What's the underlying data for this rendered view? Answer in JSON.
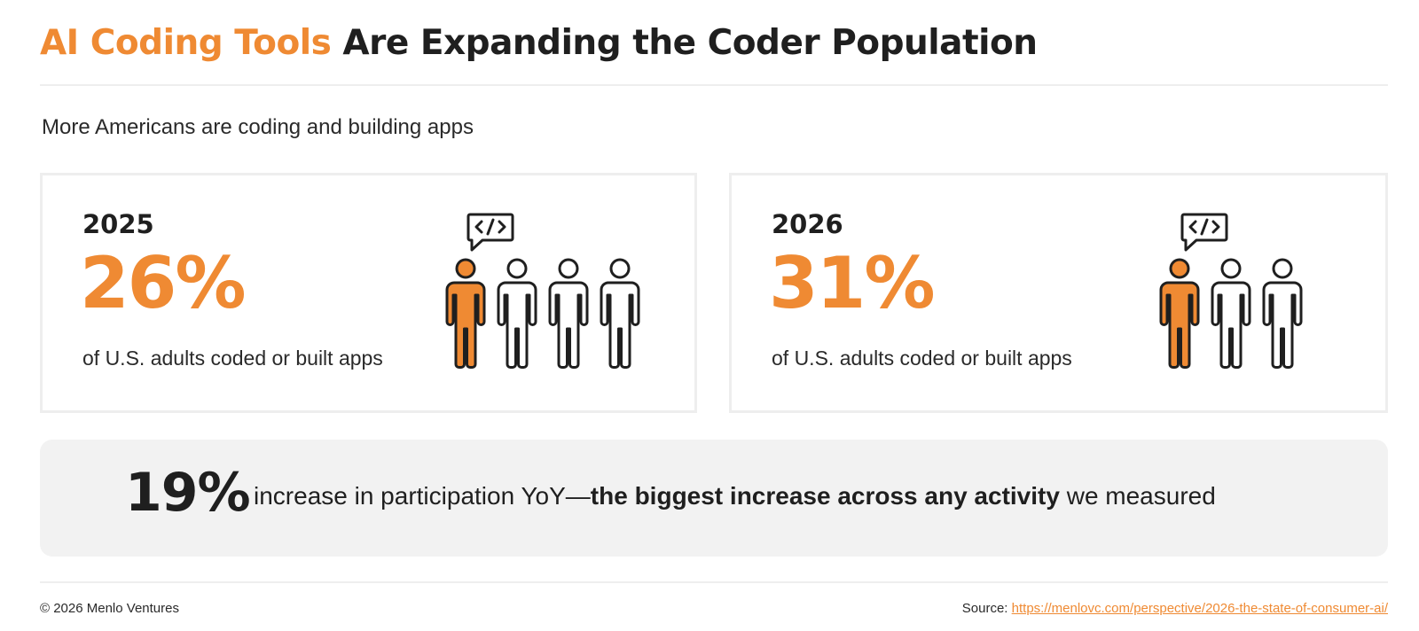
{
  "header": {
    "title_accent": "AI Coding Tools",
    "title_rest": "Are Expanding the Coder Population"
  },
  "subtitle": "More Americans are coding and building apps",
  "cards": [
    {
      "year": "2025",
      "percent": "26%",
      "description": "of U.S. adults coded or built apps",
      "figures_total": 4,
      "figures_highlighted": 1
    },
    {
      "year": "2026",
      "percent": "31%",
      "description": "of U.S. adults coded or built apps",
      "figures_total": 3,
      "figures_highlighted": 1
    }
  ],
  "banner": {
    "value": "19%",
    "text_lead": "increase in participation YoY—",
    "text_bold": "the biggest increase across any activity",
    "text_tail": " we measured"
  },
  "footer": {
    "copyright": "© 2026 Menlo Ventures",
    "source_label": "Source:",
    "source_url": "https://menlovc.com/perspective/2026-the-state-of-consumer-ai/"
  },
  "icons": {
    "person": "person-icon",
    "code_bubble": "code-speech-bubble-icon"
  },
  "colors": {
    "accent": "#ef8a33",
    "text": "#1f1f1f",
    "banner_bg": "#f2f2f2"
  }
}
